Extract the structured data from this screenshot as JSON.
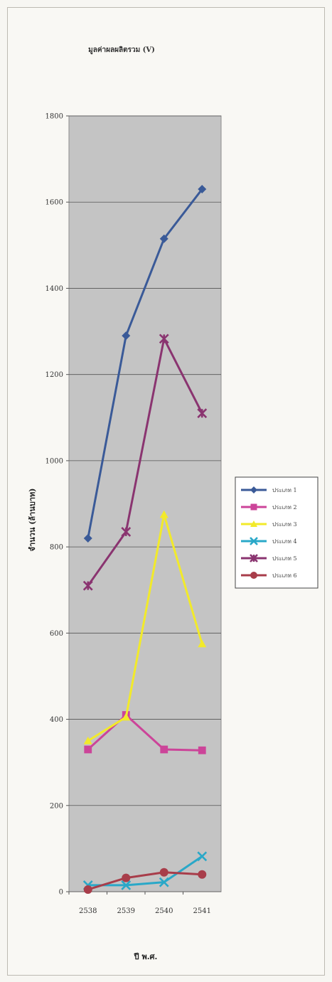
{
  "chart_data": {
    "type": "line",
    "title": "มูลค่าผลผลิตรวม (V)",
    "xlabel": "ปี พ.ศ.",
    "ylabel": "จำนวน (ล้านบาท)",
    "categories": [
      "2538",
      "2539",
      "2540",
      "2541"
    ],
    "ylim": [
      0,
      1800
    ],
    "yticks": [
      0,
      200,
      400,
      600,
      800,
      1000,
      1200,
      1400,
      1600,
      1800
    ],
    "grid": true,
    "legend_position": "right",
    "series": [
      {
        "name": "ประเภท 1",
        "values": [
          820,
          1290,
          1515,
          1630
        ],
        "color": "#3a5a98",
        "marker": "diamond"
      },
      {
        "name": "ประเภท 2",
        "values": [
          330,
          410,
          330,
          328
        ],
        "color": "#cc4499",
        "marker": "square"
      },
      {
        "name": "ประเภท 3",
        "values": [
          350,
          405,
          875,
          575
        ],
        "color": "#f2ea2a",
        "marker": "triangle"
      },
      {
        "name": "ประเภท 4",
        "values": [
          15,
          15,
          22,
          82
        ],
        "color": "#2aa8c8",
        "marker": "x"
      },
      {
        "name": "ประเภท 5",
        "values": [
          710,
          835,
          1283,
          1110
        ],
        "color": "#8a3470",
        "marker": "star"
      },
      {
        "name": "ประเภท 6",
        "values": [
          5,
          32,
          45,
          40
        ],
        "color": "#a83d4a",
        "marker": "circle"
      }
    ]
  }
}
